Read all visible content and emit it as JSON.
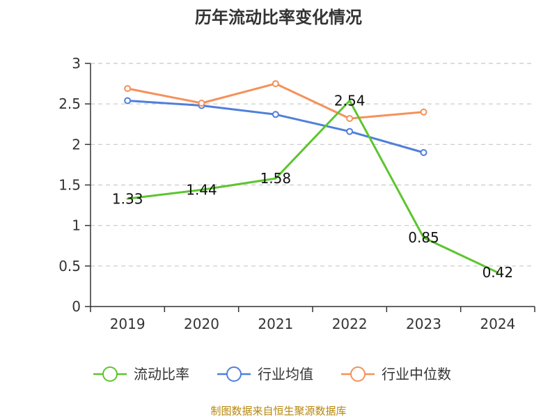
{
  "chart_data": {
    "type": "line",
    "title": "历年流动比率变化情况",
    "categories": [
      "2019",
      "2020",
      "2021",
      "2022",
      "2023",
      "2024"
    ],
    "ylim": [
      0,
      3
    ],
    "yticks": [
      0,
      0.5,
      1,
      1.5,
      2,
      2.5,
      3
    ],
    "ytick_labels": [
      "0",
      "0.5",
      "1",
      "1.5",
      "2",
      "2.5",
      "3"
    ],
    "grid": true,
    "legend_position": "bottom",
    "series": [
      {
        "name": "流动比率",
        "color": "#5cc52e",
        "values": [
          1.33,
          1.44,
          1.58,
          2.54,
          0.85,
          0.42
        ],
        "data_labels": [
          "1.33",
          "1.44",
          "1.58",
          "2.54",
          "0.85",
          "0.42"
        ],
        "show_markers": false
      },
      {
        "name": "行业均值",
        "color": "#4f7fdc",
        "values": [
          2.54,
          2.48,
          2.37,
          2.16,
          1.9,
          null
        ],
        "show_markers": true
      },
      {
        "name": "行业中位数",
        "color": "#f5915a",
        "values": [
          2.69,
          2.51,
          2.75,
          2.32,
          2.4,
          null
        ],
        "show_markers": true
      }
    ]
  },
  "footer": {
    "source": "制图数据来自恒生聚源数据库"
  }
}
